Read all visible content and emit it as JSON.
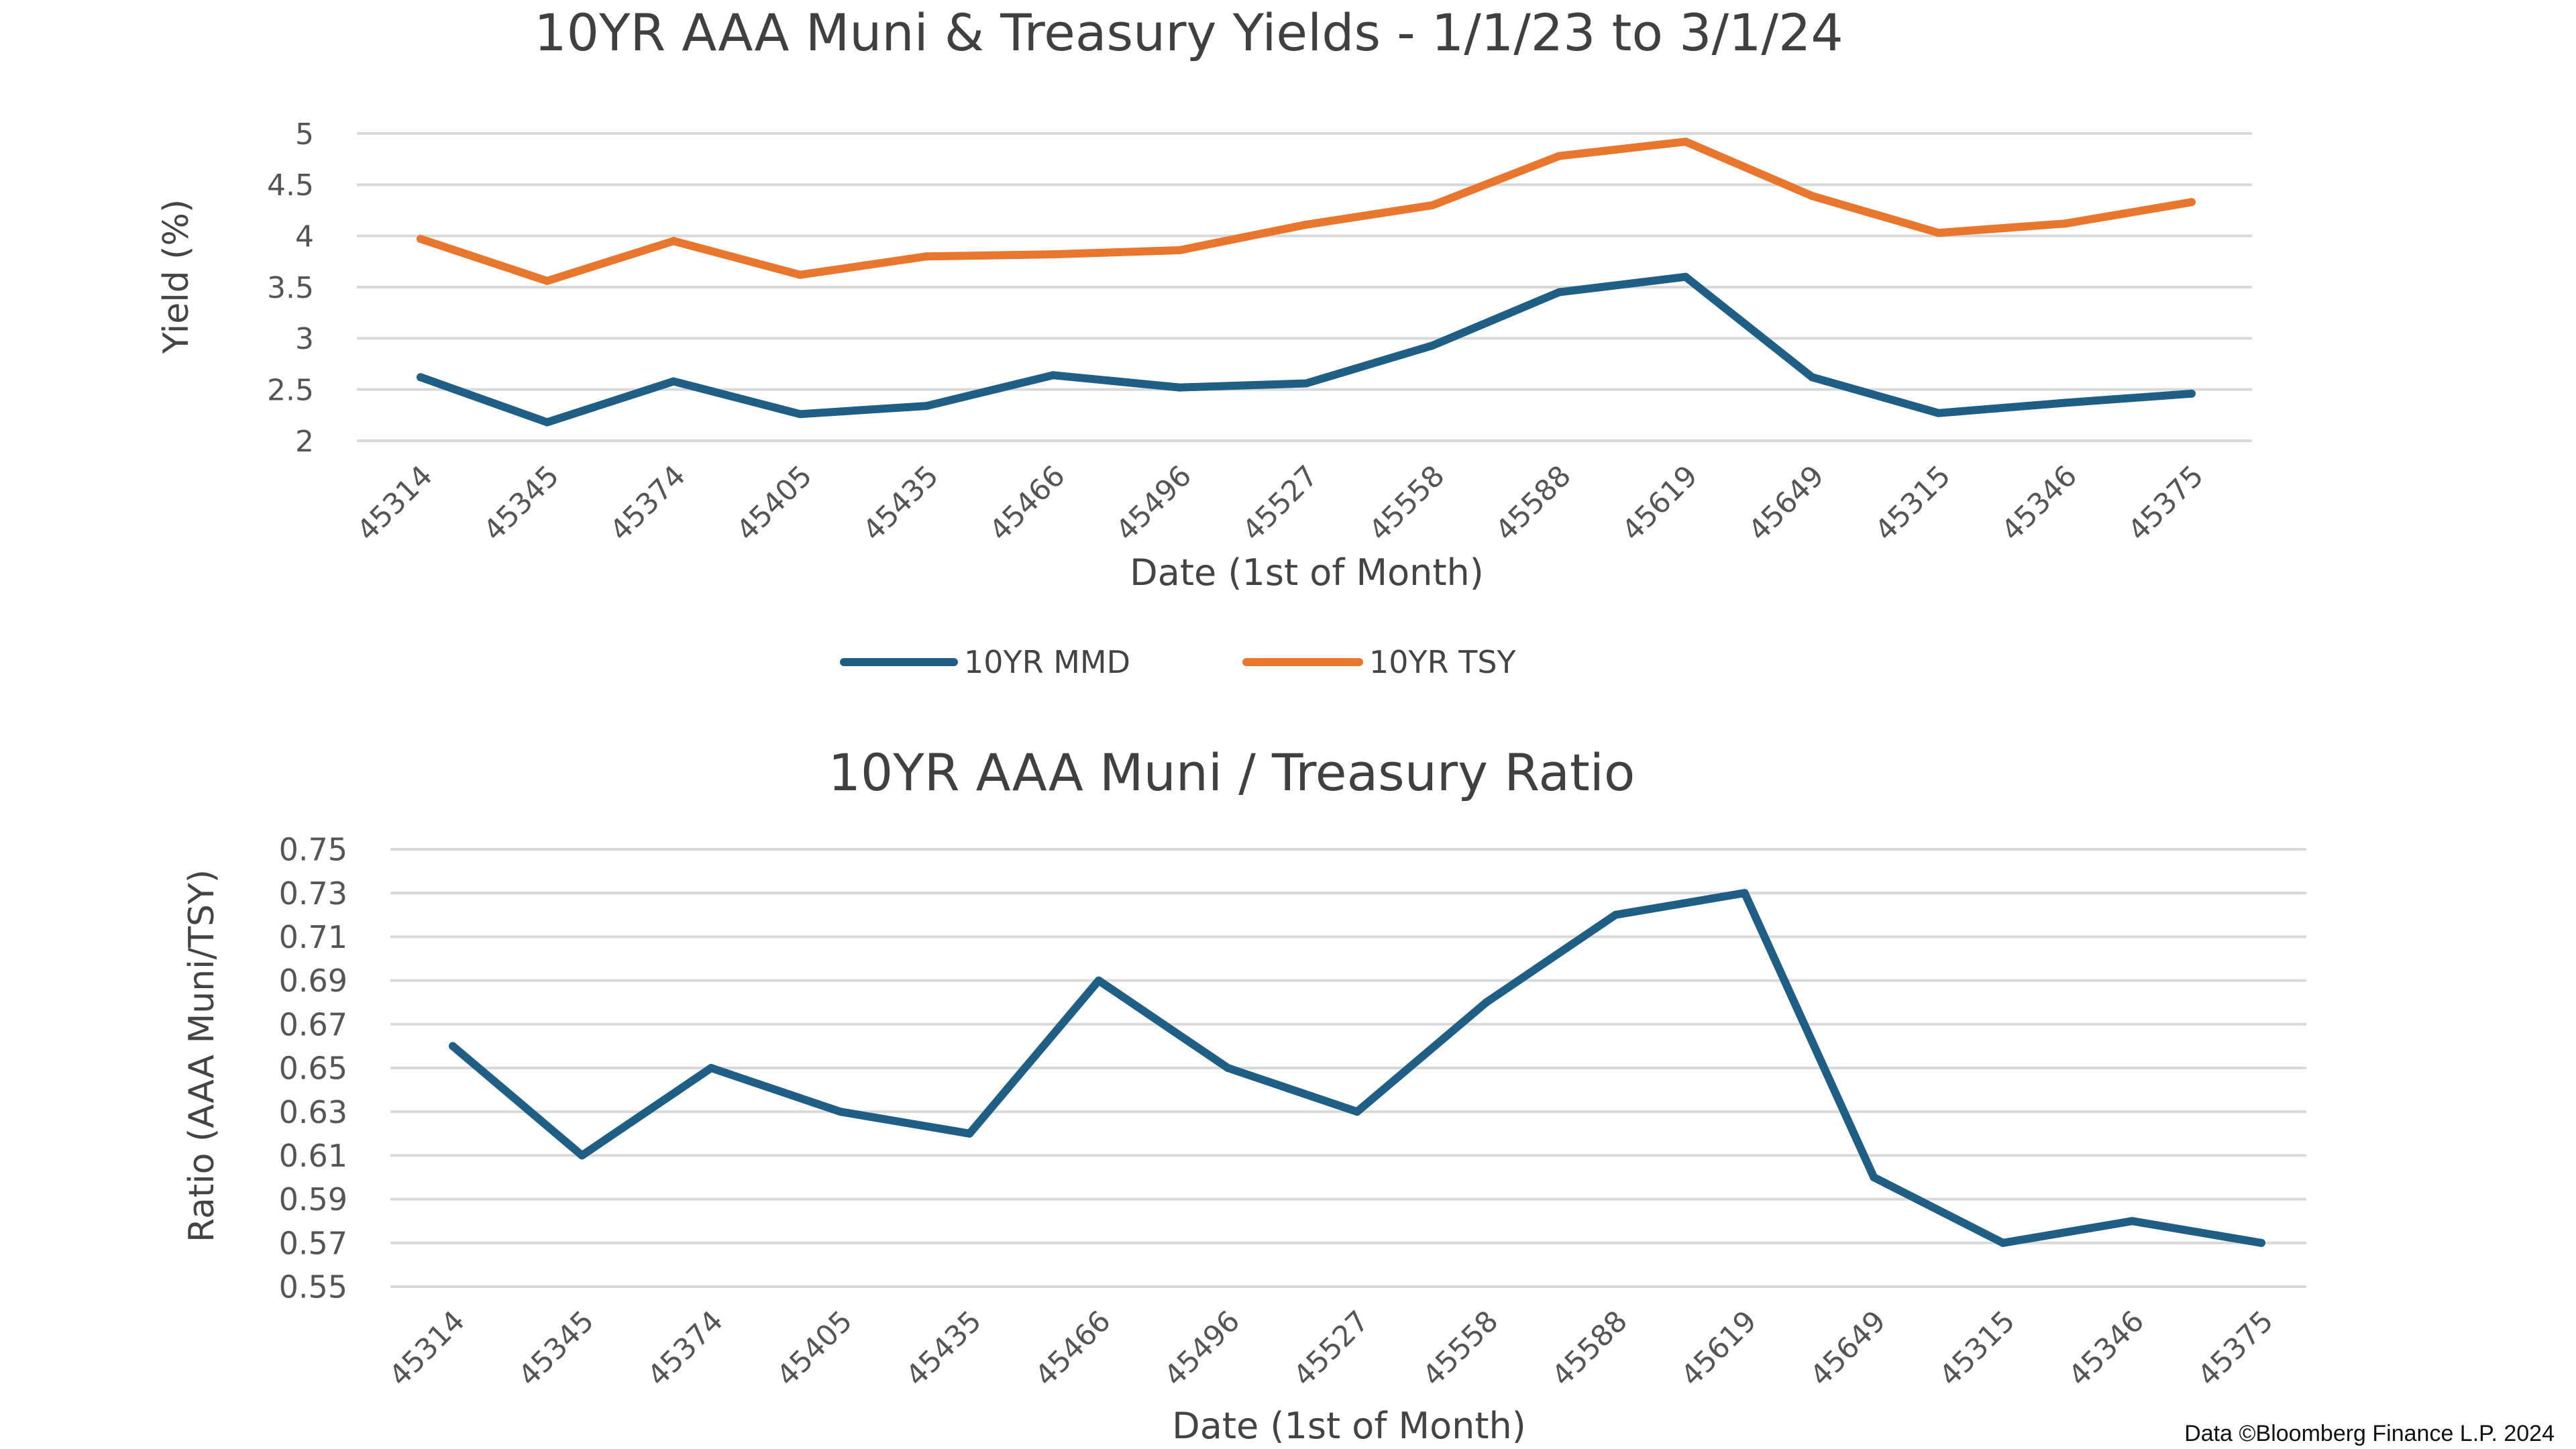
{
  "source_note": "Data ©Bloomberg Finance L.P. 2024",
  "chart_data": [
    {
      "type": "line",
      "title": "10YR AAA Muni & Treasury Yields - 1/1/23 to 3/1/24",
      "xlabel": "Date (1st of Month)",
      "ylabel": "Yield (%)",
      "categories": [
        "45314",
        "45345",
        "45374",
        "45405",
        "45435",
        "45466",
        "45496",
        "45527",
        "45558",
        "45588",
        "45619",
        "45649",
        "45315",
        "45346",
        "45375"
      ],
      "ylim": [
        2,
        5
      ],
      "yticks": [
        "2",
        "2.5",
        "3",
        "3.5",
        "4",
        "4.5",
        "5"
      ],
      "grid": true,
      "legend_position": "bottom",
      "series": [
        {
          "name": "10YR MMD",
          "color": "#1f5f85",
          "values": [
            2.62,
            2.18,
            2.58,
            2.26,
            2.34,
            2.64,
            2.52,
            2.56,
            2.93,
            3.45,
            3.6,
            2.62,
            2.27,
            2.37,
            2.46
          ]
        },
        {
          "name": "10YR TSY",
          "color": "#e8762d",
          "values": [
            3.97,
            3.56,
            3.95,
            3.62,
            3.8,
            3.82,
            3.86,
            4.11,
            4.3,
            4.78,
            4.92,
            4.39,
            4.03,
            4.12,
            4.33
          ]
        }
      ]
    },
    {
      "type": "line",
      "title": "10YR AAA Muni / Treasury Ratio",
      "xlabel": "Date (1st of Month)",
      "ylabel": "Ratio (AAA Muni/TSY)",
      "categories": [
        "45314",
        "45345",
        "45374",
        "45405",
        "45435",
        "45466",
        "45496",
        "45527",
        "45558",
        "45588",
        "45619",
        "45649",
        "45315",
        "45346",
        "45375"
      ],
      "ylim": [
        0.55,
        0.75
      ],
      "yticks": [
        "0.55",
        "0.57",
        "0.59",
        "0.61",
        "0.63",
        "0.65",
        "0.67",
        "0.69",
        "0.71",
        "0.73",
        "0.75"
      ],
      "grid": true,
      "legend_position": "none",
      "series": [
        {
          "color": "#1f5f85",
          "values": [
            0.66,
            0.61,
            0.65,
            0.63,
            0.62,
            0.69,
            0.65,
            0.63,
            0.68,
            0.72,
            0.73,
            0.6,
            0.57,
            0.58,
            0.57
          ]
        }
      ]
    }
  ]
}
